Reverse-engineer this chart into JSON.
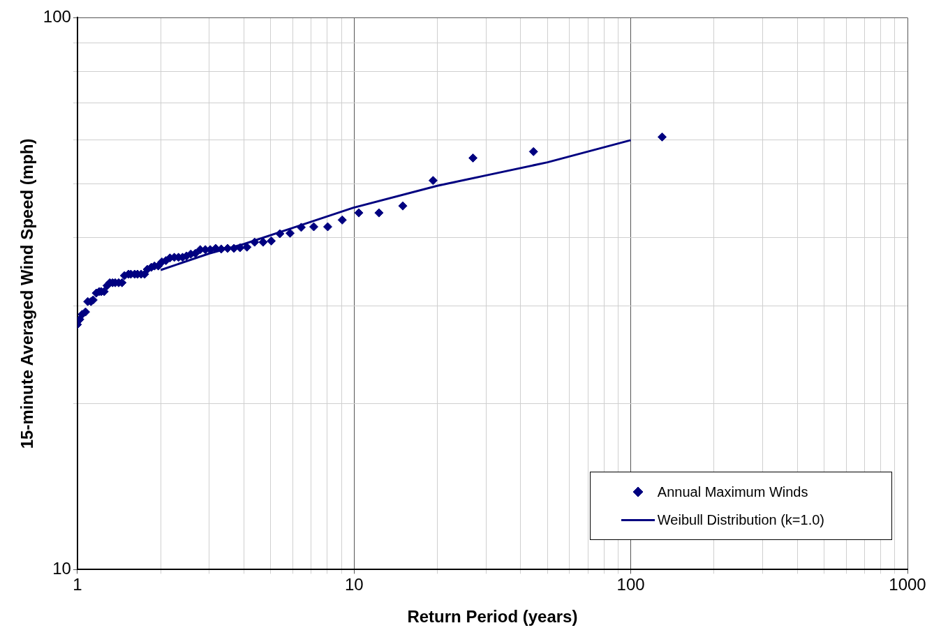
{
  "chart_data": {
    "type": "scatter",
    "xlabel": "Return Period (years)",
    "ylabel": "15-minute Averaged Wind Speed (mph)",
    "log": "xy",
    "xlim": [
      1,
      1000
    ],
    "ylim": [
      10,
      100
    ],
    "xticks": [
      1,
      {
        "value": 2,
        "label": null
      },
      {
        "value": 3,
        "label": null
      },
      {
        "value": 4,
        "label": null
      },
      {
        "value": 5,
        "label": null
      },
      {
        "value": 6,
        "label": null
      },
      {
        "value": 7,
        "label": null
      },
      {
        "value": 8,
        "label": null
      },
      {
        "value": 9,
        "label": null
      },
      10,
      {
        "value": 20,
        "label": null
      },
      {
        "value": 30,
        "label": null
      },
      {
        "value": 40,
        "label": null
      },
      {
        "value": 50,
        "label": null
      },
      {
        "value": 60,
        "label": null
      },
      {
        "value": 70,
        "label": null
      },
      {
        "value": 80,
        "label": null
      },
      {
        "value": 90,
        "label": null
      },
      100,
      {
        "value": 200,
        "label": null
      },
      {
        "value": 300,
        "label": null
      },
      {
        "value": 400,
        "label": null
      },
      {
        "value": 500,
        "label": null
      },
      {
        "value": 600,
        "label": null
      },
      {
        "value": 700,
        "label": null
      },
      {
        "value": 800,
        "label": null
      },
      {
        "value": 900,
        "label": null
      },
      1000
    ],
    "yticks": [
      10,
      {
        "value": 20,
        "label": null
      },
      {
        "value": 30,
        "label": null
      },
      {
        "value": 40,
        "label": null
      },
      {
        "value": 50,
        "label": null
      },
      {
        "value": 60,
        "label": null
      },
      {
        "value": 70,
        "label": null
      },
      {
        "value": 80,
        "label": null
      },
      {
        "value": 90,
        "label": null
      },
      100
    ],
    "grid": true,
    "legend": "bottom right",
    "series": [
      {
        "name": "Annual Maximum Winds",
        "type": "scatter",
        "marker": "diamond",
        "color": "#000080",
        "x": [
          1.0,
          1.02,
          1.04,
          1.07,
          1.09,
          1.12,
          1.14,
          1.17,
          1.2,
          1.22,
          1.25,
          1.28,
          1.31,
          1.34,
          1.37,
          1.41,
          1.45,
          1.48,
          1.53,
          1.56,
          1.61,
          1.65,
          1.7,
          1.75,
          1.79,
          1.85,
          1.9,
          1.96,
          2.02,
          2.09,
          2.16,
          2.24,
          2.32,
          2.4,
          2.48,
          2.57,
          2.67,
          2.78,
          2.9,
          3.02,
          3.16,
          3.31,
          3.49,
          3.68,
          3.87,
          4.1,
          4.37,
          4.69,
          5.02,
          5.39,
          5.87,
          6.44,
          7.15,
          8.03,
          9.06,
          10.4,
          12.3,
          15.0,
          19.3,
          26.9,
          44.5,
          129.8
        ],
        "values": [
          27.8,
          28.4,
          29.0,
          29.3,
          30.6,
          30.6,
          30.8,
          31.7,
          31.9,
          31.9,
          31.9,
          32.7,
          33.1,
          33.1,
          33.1,
          33.1,
          33.1,
          34.1,
          34.3,
          34.3,
          34.3,
          34.3,
          34.3,
          34.3,
          35.0,
          35.3,
          35.5,
          35.5,
          36.1,
          36.3,
          36.7,
          36.8,
          36.8,
          36.8,
          37.0,
          37.3,
          37.4,
          38.0,
          38.0,
          38.0,
          38.2,
          38.1,
          38.2,
          38.2,
          38.3,
          38.4,
          39.2,
          39.2,
          39.4,
          40.6,
          40.7,
          41.7,
          41.8,
          41.8,
          43.0,
          44.3,
          44.3,
          45.6,
          50.7,
          55.7,
          57.2,
          60.8
        ]
      },
      {
        "name": "Weibull Distribution (k=1.0)",
        "type": "line",
        "marker": "none",
        "line_style": "solid",
        "color": "#000080",
        "x": [
          2,
          3,
          4,
          6,
          10,
          20,
          30,
          50,
          100
        ],
        "values": [
          34.9,
          37.4,
          38.9,
          41.6,
          45.3,
          49.6,
          51.8,
          54.7,
          60.0
        ]
      }
    ]
  }
}
